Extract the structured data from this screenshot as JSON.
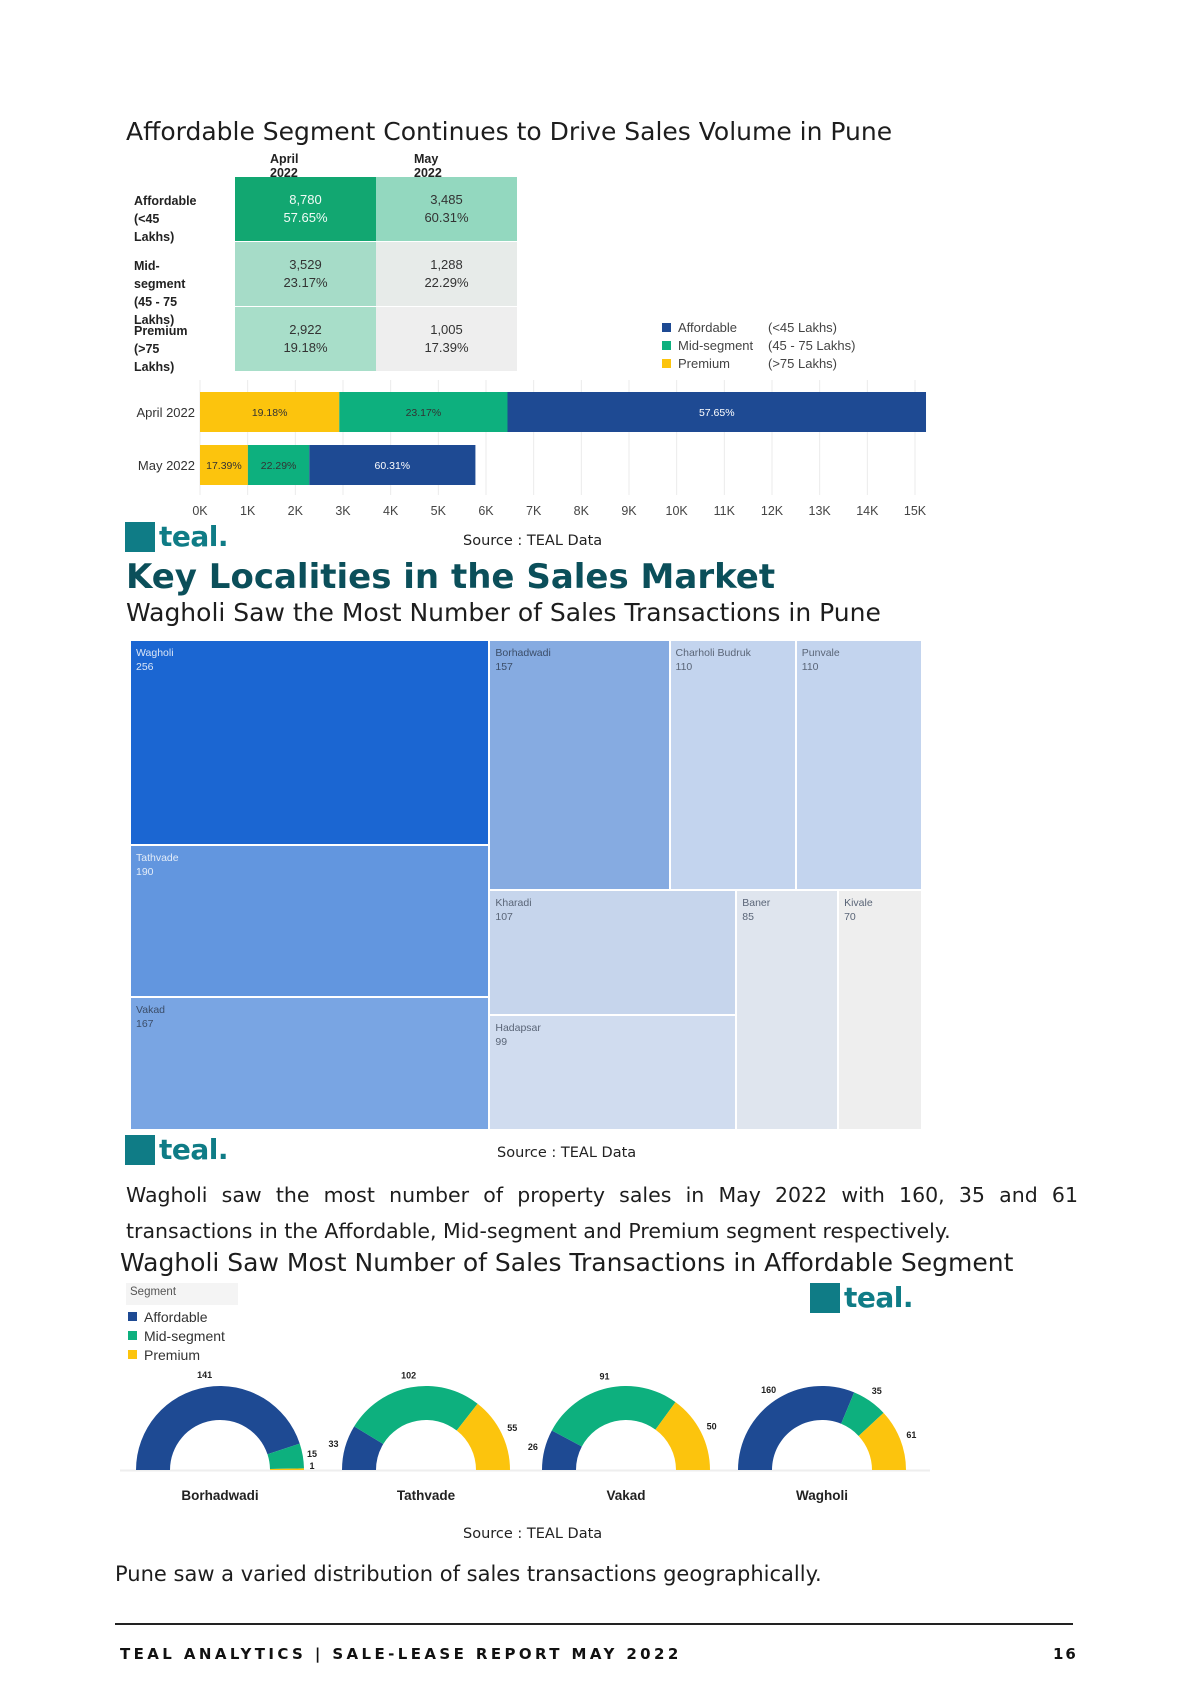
{
  "section1": {
    "title": "Affordable Segment Continues to Drive Sales Volume in Pune",
    "source": "Source : TEAL Data"
  },
  "logo_text": "teal.",
  "colors": {
    "affordable": "#1e4a93",
    "mid_segment": "#0db07e",
    "premium": "#fcc40d",
    "brand": "#0f7c86",
    "heading": "#0b4f5a"
  },
  "segment_table": {
    "columns": [
      "April 2022",
      "May 2022"
    ],
    "rows": [
      {
        "label": "Affordable",
        "sublabel": "(<45 Lakhs)",
        "values": [
          {
            "count": "8,780",
            "pct": "57.65%"
          },
          {
            "count": "3,485",
            "pct": "60.31%"
          }
        ]
      },
      {
        "label": "Mid-segment",
        "sublabel": "(45 - 75 Lakhs)",
        "values": [
          {
            "count": "3,529",
            "pct": "23.17%"
          },
          {
            "count": "1,288",
            "pct": "22.29%"
          }
        ]
      },
      {
        "label": "Premium",
        "sublabel": "(>75 Lakhs)",
        "values": [
          {
            "count": "2,922",
            "pct": "19.18%"
          },
          {
            "count": "1,005",
            "pct": "17.39%"
          }
        ]
      }
    ],
    "cell_colors": [
      [
        "#12a771",
        "#93d8bf"
      ],
      [
        "#a6dcc8",
        "#e7ebe9"
      ],
      [
        "#a8dec9",
        "#eeeeee"
      ]
    ]
  },
  "segment_legend": [
    {
      "name": "Affordable",
      "range": "(<45 Lakhs)",
      "color": "#1e4a93"
    },
    {
      "name": "Mid-segment",
      "range": "(45 - 75 Lakhs)",
      "color": "#0db07e"
    },
    {
      "name": "Premium",
      "range": "(>75 Lakhs)",
      "color": "#fcc40d"
    }
  ],
  "chart_data": [
    {
      "type": "bar",
      "orientation": "horizontal-stacked",
      "categories": [
        "April 2022",
        "May 2022"
      ],
      "series": [
        {
          "name": "Premium",
          "values": [
            2922,
            1005
          ],
          "labels": [
            "19.18%",
            "17.39%"
          ],
          "color": "#fcc40d"
        },
        {
          "name": "Mid-segment",
          "values": [
            3529,
            1288
          ],
          "labels": [
            "23.17%",
            "22.29%"
          ],
          "color": "#0db07e"
        },
        {
          "name": "Affordable",
          "values": [
            8780,
            3485
          ],
          "labels": [
            "57.65%",
            "60.31%"
          ],
          "color": "#1e4a93"
        }
      ],
      "xlim": [
        0,
        15000
      ],
      "xticks": [
        "0K",
        "1K",
        "2K",
        "3K",
        "4K",
        "5K",
        "6K",
        "7K",
        "8K",
        "9K",
        "10K",
        "11K",
        "12K",
        "13K",
        "14K",
        "15K"
      ],
      "grid": true
    },
    {
      "type": "heatmap",
      "subtype": "treemap",
      "items": [
        {
          "name": "Wagholi",
          "value": 256,
          "color": "#1b66d2",
          "text_color": "#dbe6f7"
        },
        {
          "name": "Tathvade",
          "value": 190,
          "color": "#6296df",
          "text_color": "#e3ecf8"
        },
        {
          "name": "Vakad",
          "value": 167,
          "color": "#79a5e3",
          "text_color": "#3b4d68"
        },
        {
          "name": "Borhadwadi",
          "value": 157,
          "color": "#86abe1",
          "text_color": "#3b4d68"
        },
        {
          "name": "Charholi Budruk",
          "value": 110,
          "color": "#c3d4ee",
          "text_color": "#5a6577"
        },
        {
          "name": "Punvale",
          "value": 110,
          "color": "#c3d4ee",
          "text_color": "#5a6577"
        },
        {
          "name": "Kharadi",
          "value": 107,
          "color": "#c6d5ec",
          "text_color": "#5a6577"
        },
        {
          "name": "Hadapsar",
          "value": 99,
          "color": "#d0dcef",
          "text_color": "#5a6577"
        },
        {
          "name": "Baner",
          "value": 85,
          "color": "#dfe5ee",
          "text_color": "#5a6577"
        },
        {
          "name": "Kivale",
          "value": 70,
          "color": "#eeeeee",
          "text_color": "#5a6577"
        }
      ]
    },
    {
      "type": "pie",
      "subtype": "semi-donut",
      "legend_title": "Segment",
      "series_names": [
        "Affordable",
        "Mid-segment",
        "Premium"
      ],
      "colors": [
        "#1e4a93",
        "#0db07e",
        "#fcc40d"
      ],
      "charts": [
        {
          "name": "Borhadwadi",
          "values": [
            141,
            15,
            1
          ]
        },
        {
          "name": "Tathvade",
          "values": [
            33,
            102,
            55
          ]
        },
        {
          "name": "Vakad",
          "values": [
            26,
            91,
            50
          ]
        },
        {
          "name": "Wagholi",
          "values": [
            160,
            35,
            61
          ]
        }
      ]
    }
  ],
  "section2": {
    "heading": "Key Localities in the Sales Market",
    "title": "Wagholi Saw the Most Number of Sales Transactions in Pune",
    "source": "Source : TEAL Data",
    "paragraph_line1": "Wagholi saw the most number of property sales in May 2022 with 160, 35 and 61",
    "paragraph_line2": "transactions in the Affordable, Mid-segment and Premium segment respectively."
  },
  "section3": {
    "title": "Wagholi Saw Most Number of Sales Transactions in Affordable Segment",
    "source": "Source : TEAL Data",
    "closing": "Pune saw a varied distribution of sales transactions geographically."
  },
  "footer": {
    "left": "TEAL ANALYTICS | SALE-LEASE REPORT MAY 2022",
    "page": "16"
  }
}
